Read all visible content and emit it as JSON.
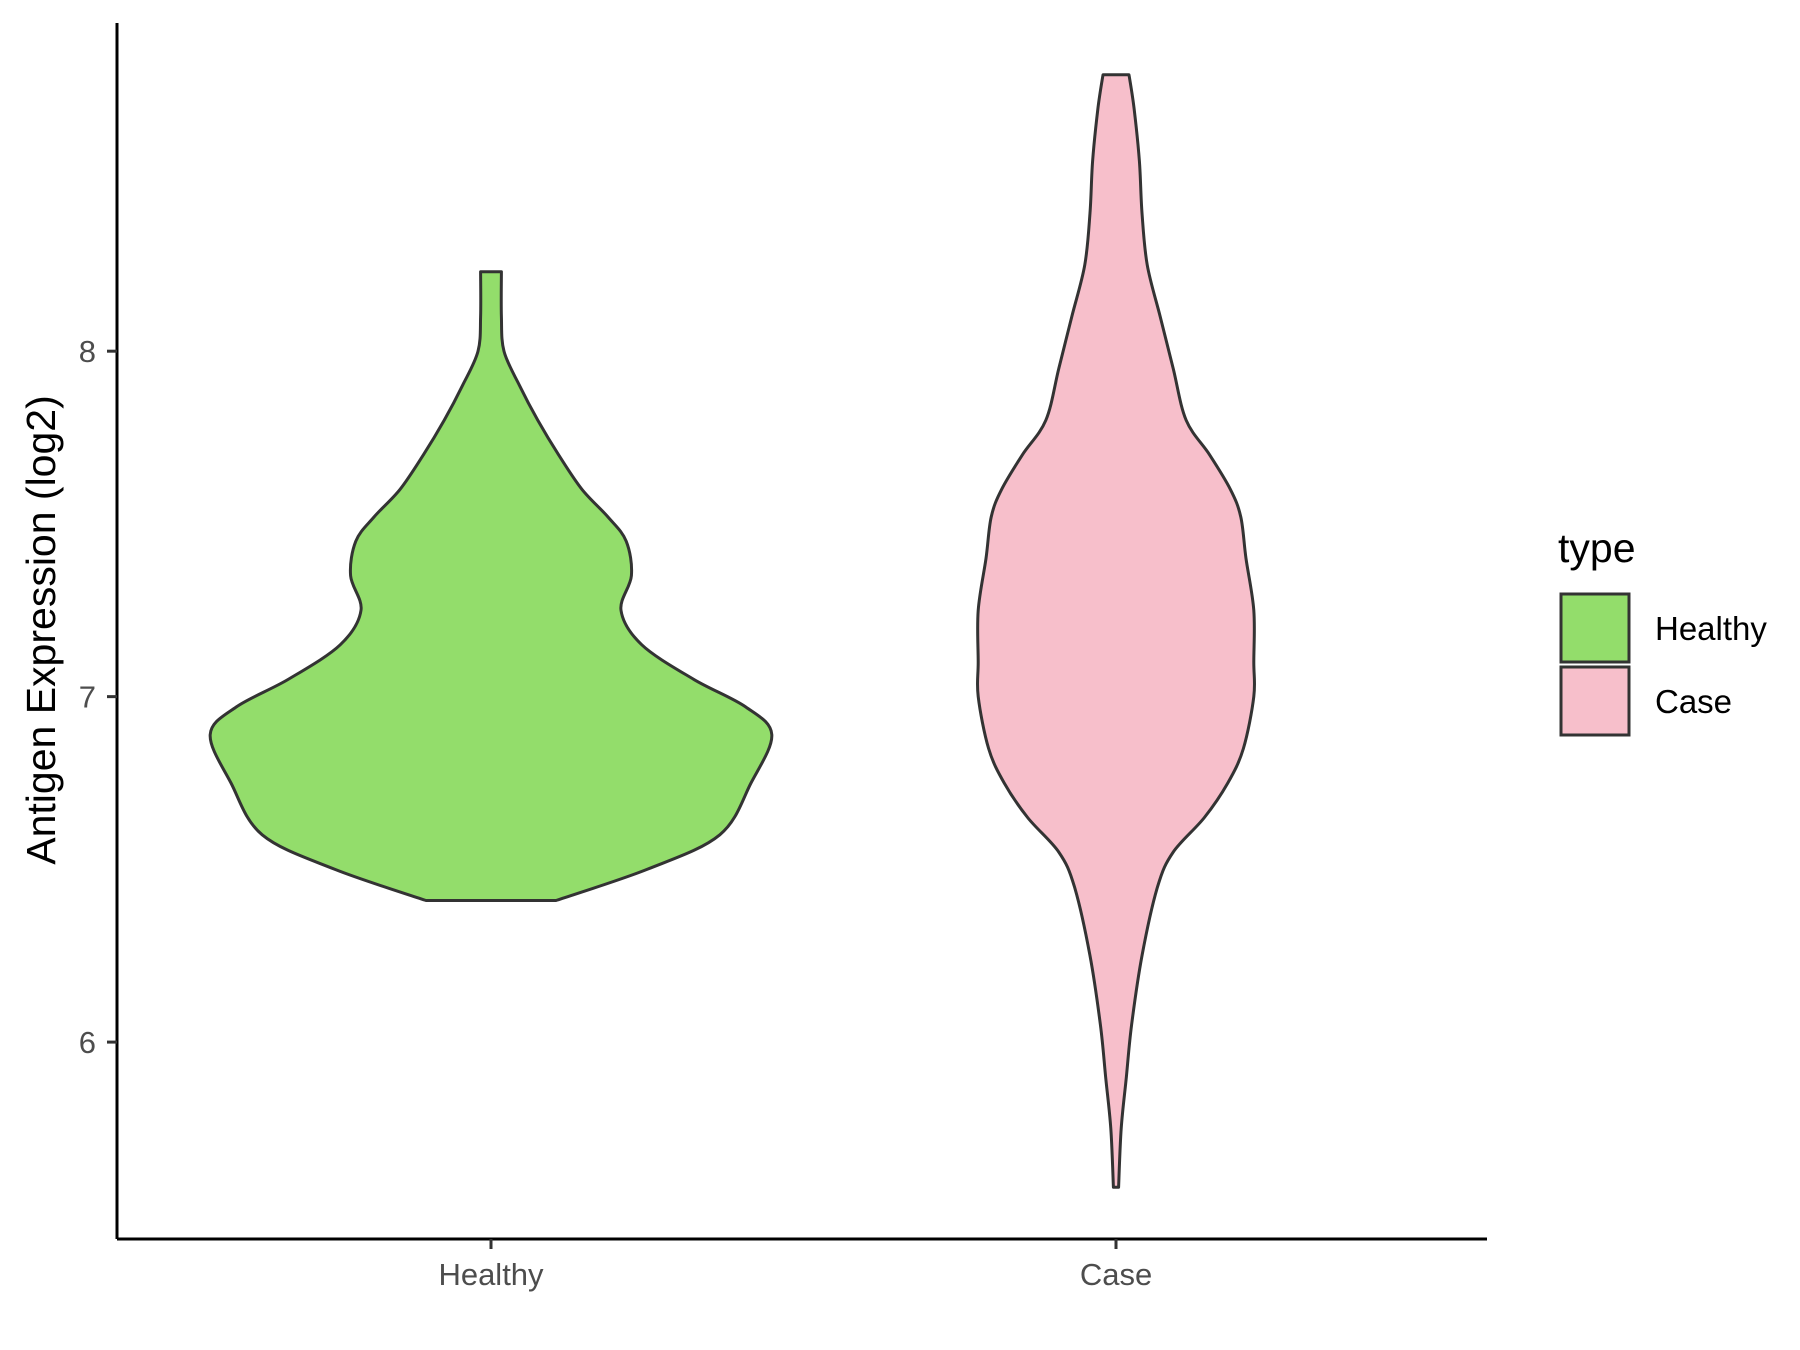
{
  "chart_data": {
    "type": "violin",
    "title": "",
    "xlabel": "",
    "ylabel": "Antigen Expression (log2)",
    "ylim": [
      5.43,
      8.95
    ],
    "yticks": [
      6,
      7,
      8
    ],
    "categories": [
      "Healthy",
      "Case"
    ],
    "legend": {
      "title": "type",
      "position": "right",
      "entries": [
        "Healthy",
        "Case"
      ]
    },
    "series": [
      {
        "name": "Healthy",
        "color": "#93dd6b",
        "min": 6.41,
        "max": 8.23,
        "density": [
          {
            "y": 6.41,
            "w": 0.25
          },
          {
            "y": 6.5,
            "w": 0.6
          },
          {
            "y": 6.6,
            "w": 0.88
          },
          {
            "y": 6.75,
            "w": 1.0
          },
          {
            "y": 6.89,
            "w": 1.08
          },
          {
            "y": 6.97,
            "w": 0.98
          },
          {
            "y": 7.05,
            "w": 0.78
          },
          {
            "y": 7.15,
            "w": 0.58
          },
          {
            "y": 7.25,
            "w": 0.5
          },
          {
            "y": 7.35,
            "w": 0.54
          },
          {
            "y": 7.45,
            "w": 0.52
          },
          {
            "y": 7.52,
            "w": 0.45
          },
          {
            "y": 7.6,
            "w": 0.35
          },
          {
            "y": 7.7,
            "w": 0.26
          },
          {
            "y": 7.8,
            "w": 0.18
          },
          {
            "y": 7.9,
            "w": 0.11
          },
          {
            "y": 8.0,
            "w": 0.05
          },
          {
            "y": 8.1,
            "w": 0.04
          },
          {
            "y": 8.23,
            "w": 0.04
          }
        ]
      },
      {
        "name": "Case",
        "color": "#f7bfcb",
        "min": 5.58,
        "max": 8.8,
        "density": [
          {
            "y": 5.58,
            "w": 0.01
          },
          {
            "y": 5.75,
            "w": 0.02
          },
          {
            "y": 5.9,
            "w": 0.04
          },
          {
            "y": 6.05,
            "w": 0.06
          },
          {
            "y": 6.25,
            "w": 0.1
          },
          {
            "y": 6.45,
            "w": 0.16
          },
          {
            "y": 6.55,
            "w": 0.22
          },
          {
            "y": 6.65,
            "w": 0.34
          },
          {
            "y": 6.75,
            "w": 0.43
          },
          {
            "y": 6.85,
            "w": 0.49
          },
          {
            "y": 7.0,
            "w": 0.53
          },
          {
            "y": 7.1,
            "w": 0.53
          },
          {
            "y": 7.25,
            "w": 0.53
          },
          {
            "y": 7.4,
            "w": 0.5
          },
          {
            "y": 7.52,
            "w": 0.48
          },
          {
            "y": 7.6,
            "w": 0.44
          },
          {
            "y": 7.7,
            "w": 0.36
          },
          {
            "y": 7.8,
            "w": 0.27
          },
          {
            "y": 7.95,
            "w": 0.22
          },
          {
            "y": 8.1,
            "w": 0.17
          },
          {
            "y": 8.25,
            "w": 0.12
          },
          {
            "y": 8.4,
            "w": 0.1
          },
          {
            "y": 8.55,
            "w": 0.09
          },
          {
            "y": 8.7,
            "w": 0.07
          },
          {
            "y": 8.8,
            "w": 0.05
          }
        ]
      }
    ]
  }
}
